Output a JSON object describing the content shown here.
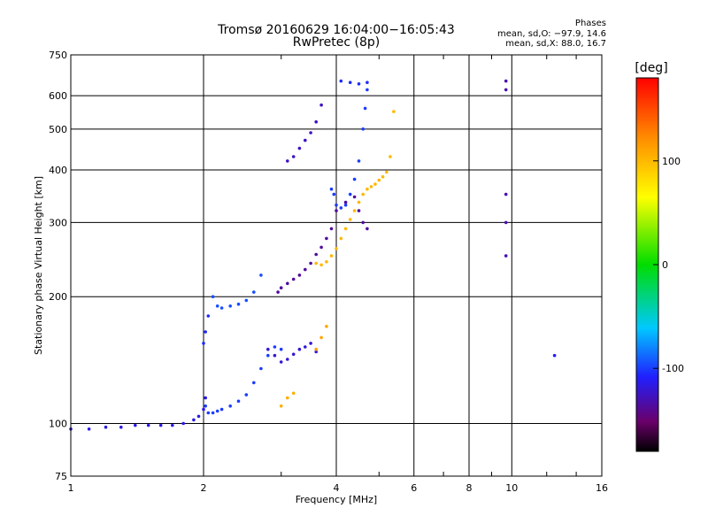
{
  "header": {
    "title": "Tromsø 20160629 16:04:00−16:05:43",
    "subtitle": "RwPretec (8p)",
    "phase_heading": "Phases",
    "phase_o": "mean, sd,O: −97.9, 14.6",
    "phase_x": "mean, sd,X:  88.0, 16.7"
  },
  "colorbar": {
    "unit": "[deg]",
    "ticks": [
      "100",
      "0",
      "-100"
    ],
    "tick_values": [
      100,
      0,
      -100
    ],
    "range": [
      -180,
      180
    ]
  },
  "chart_data": {
    "type": "scatter",
    "title": "Tromsø 20160629 16:04:00−16:05:43",
    "subtitle": "RwPretec (8p)",
    "xlabel": "Frequency [MHz]",
    "ylabel": "Stationary phase Virtual Height [km]",
    "x_scale": "log",
    "y_scale": "log",
    "xlim": [
      1,
      16
    ],
    "ylim": [
      75,
      750
    ],
    "x_ticks": [
      1,
      2,
      4,
      6,
      8,
      10,
      16
    ],
    "x_tick_labels": [
      "1",
      "2",
      "4",
      "6",
      "8",
      "10",
      "16"
    ],
    "y_ticks": [
      75,
      100,
      200,
      300,
      400,
      500,
      600,
      750
    ],
    "y_tick_labels": [
      "75",
      "100",
      "200",
      "300",
      "400",
      "500",
      "600",
      "750"
    ],
    "grid": true,
    "color_encoding": "phase [deg]",
    "traces": [
      {
        "name": "",
        "phase": -115,
        "x": [
          1.0,
          1.1,
          1.2,
          1.3,
          1.4,
          1.5,
          1.6,
          1.7,
          1.8,
          1.9,
          1.95,
          2.0,
          2.02
        ],
        "y": [
          97,
          97,
          98,
          98,
          99,
          99,
          99,
          99,
          100,
          102,
          104,
          108,
          115
        ]
      },
      {
        "name": "",
        "phase": -100,
        "x": [
          2.02,
          2.05,
          2.1,
          2.15,
          2.2,
          2.3,
          2.4,
          2.5,
          2.6,
          2.7,
          2.8,
          2.9,
          3.0
        ],
        "y": [
          110,
          106,
          106,
          107,
          108,
          110,
          113,
          117,
          125,
          135,
          145,
          152,
          150
        ]
      },
      {
        "name": "",
        "phase": -105,
        "x": [
          2.0,
          2.02,
          2.05
        ],
        "y": [
          155,
          165,
          180
        ]
      },
      {
        "name": "",
        "phase": -95,
        "x": [
          2.1,
          2.15,
          2.2,
          2.3,
          2.4,
          2.5,
          2.6,
          2.7
        ],
        "y": [
          200,
          190,
          188,
          190,
          192,
          196,
          205,
          225
        ]
      },
      {
        "name": "",
        "phase": -120,
        "x": [
          2.8,
          2.9,
          3.0,
          3.1,
          3.2,
          3.3,
          3.4,
          3.5,
          3.6
        ],
        "y": [
          150,
          145,
          140,
          142,
          146,
          150,
          152,
          155,
          148
        ]
      },
      {
        "name": "",
        "phase": -135,
        "x": [
          2.95,
          3.0,
          3.1,
          3.2,
          3.3,
          3.4,
          3.5,
          3.6,
          3.7,
          3.8,
          3.9,
          4.0,
          4.2,
          4.4,
          4.5,
          4.6,
          4.7
        ],
        "y": [
          205,
          210,
          215,
          220,
          225,
          232,
          240,
          252,
          262,
          275,
          290,
          320,
          335,
          345,
          320,
          300,
          290
        ]
      },
      {
        "name": "",
        "phase": -125,
        "x": [
          3.1,
          3.2,
          3.3,
          3.4,
          3.5,
          3.6,
          3.7
        ],
        "y": [
          420,
          430,
          450,
          470,
          490,
          520,
          570
        ]
      },
      {
        "name": "",
        "phase": -100,
        "x": [
          3.9,
          3.95,
          4.0,
          4.1,
          4.2,
          4.3,
          4.4,
          4.5,
          4.6,
          4.65,
          4.7
        ],
        "y": [
          360,
          350,
          330,
          325,
          330,
          350,
          380,
          420,
          500,
          560,
          620
        ]
      },
      {
        "name": "",
        "phase": -105,
        "x": [
          4.1,
          4.3,
          4.5,
          4.7
        ],
        "y": [
          650,
          645,
          640,
          645
        ]
      },
      {
        "name": "",
        "phase": 100,
        "x": [
          3.6,
          3.7,
          3.8,
          3.9,
          4.0,
          4.1,
          4.2,
          4.3,
          4.4,
          4.5,
          4.6,
          4.7,
          4.8,
          4.9,
          5.0,
          5.1,
          5.2,
          5.3,
          5.4
        ],
        "y": [
          240,
          238,
          242,
          250,
          260,
          275,
          290,
          305,
          320,
          335,
          350,
          360,
          365,
          370,
          378,
          385,
          395,
          430,
          550
        ]
      },
      {
        "name": "",
        "phase": 105,
        "x": [
          3.0,
          3.1,
          3.2
        ],
        "y": [
          110,
          115,
          118
        ]
      },
      {
        "name": "",
        "phase": 110,
        "x": [
          3.6,
          3.7,
          3.8
        ],
        "y": [
          150,
          160,
          170
        ]
      },
      {
        "name": "",
        "phase": -130,
        "x": [
          9.7,
          9.7,
          9.7,
          9.7,
          9.7
        ],
        "y": [
          650,
          620,
          350,
          300,
          250
        ]
      },
      {
        "name": "",
        "phase": -110,
        "x": [
          12.5
        ],
        "y": [
          145
        ]
      }
    ]
  }
}
